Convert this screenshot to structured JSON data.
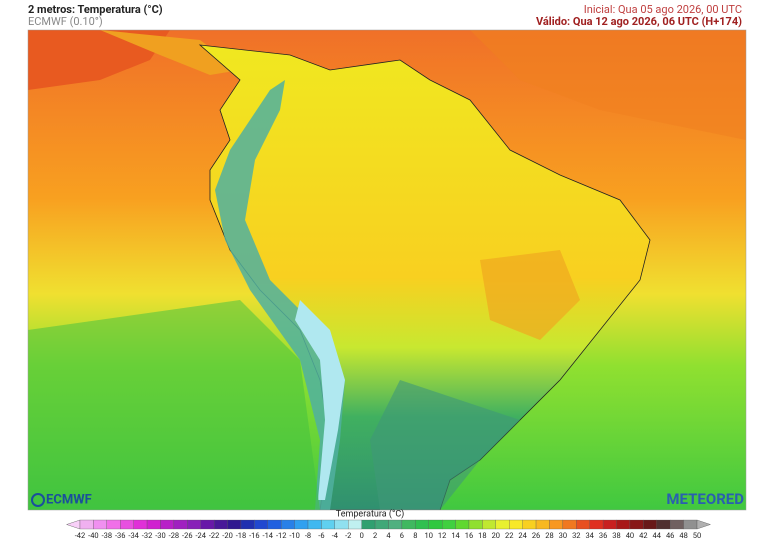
{
  "header": {
    "title": "2 metros: Temperatura (°C)",
    "source": "ECMWF (0.10°)",
    "initial": "Inicial: Qua 05 ago 2026, 00 UTC",
    "valid": "Válido: Qua 12 ago 2026, 06 UTC (H+174)"
  },
  "logos": {
    "left": "ECMWF",
    "right": "METEORED"
  },
  "colorbar": {
    "title": "Temperatura (°C)",
    "ticks": [
      -42,
      -40,
      -38,
      -36,
      -34,
      -32,
      -30,
      -28,
      -26,
      -24,
      -22,
      -20,
      -18,
      -16,
      -14,
      -12,
      -10,
      -8,
      -6,
      -4,
      -2,
      0,
      2,
      4,
      6,
      8,
      10,
      12,
      14,
      16,
      18,
      20,
      22,
      24,
      26,
      28,
      30,
      32,
      34,
      36,
      38,
      40,
      42,
      44,
      46,
      48,
      50
    ],
    "colors": [
      "#f8d0f8",
      "#f0b0f0",
      "#f090f0",
      "#f070e8",
      "#e850e0",
      "#e030d8",
      "#d020d0",
      "#b820c8",
      "#a020c0",
      "#8820b8",
      "#6818a8",
      "#481898",
      "#301890",
      "#2030b0",
      "#2048d0",
      "#2060e0",
      "#2880e8",
      "#30a0f0",
      "#40b8f0",
      "#60d0f0",
      "#90e0f0",
      "#c0f0f0",
      "#30a070",
      "#40a878",
      "#50b080",
      "#40b860",
      "#30c050",
      "#30c840",
      "#40d040",
      "#60d830",
      "#90e030",
      "#c0e830",
      "#e8f030",
      "#f8e828",
      "#f8d020",
      "#f8b820",
      "#f89820",
      "#f07820",
      "#e85020",
      "#e03020",
      "#c82020",
      "#a81818",
      "#881818",
      "#681818",
      "#503030",
      "#706060",
      "#909090",
      "#b0b0b0"
    ]
  }
}
